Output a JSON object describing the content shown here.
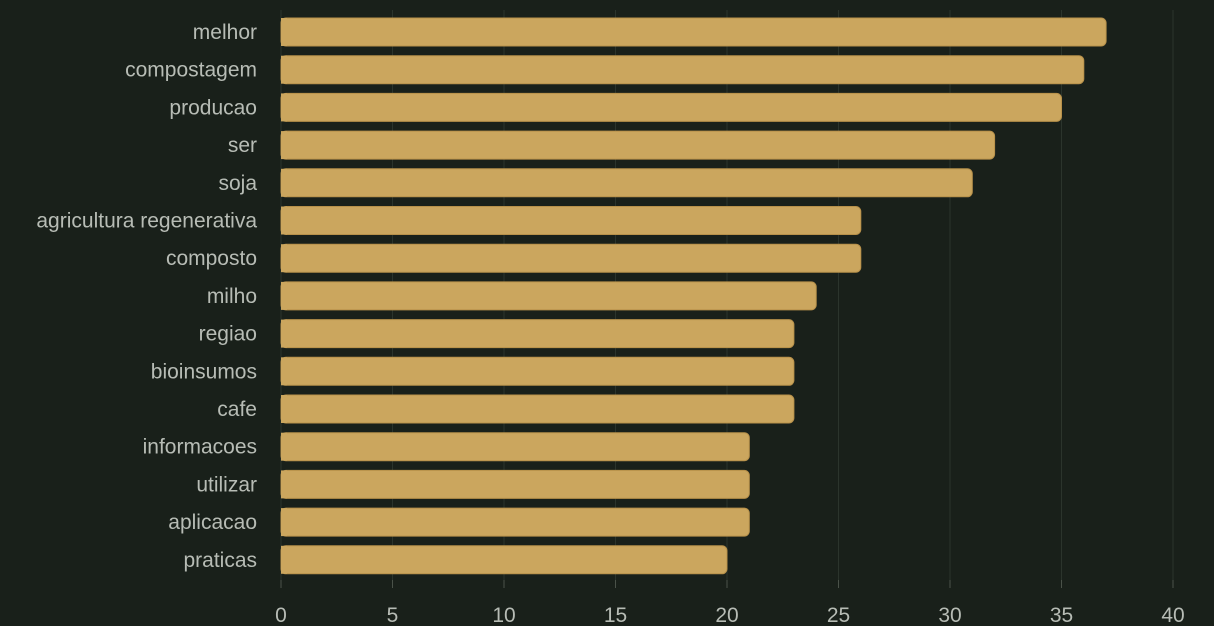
{
  "chart_data": {
    "type": "bar",
    "orientation": "horizontal",
    "categories": [
      "melhor",
      "compostagem",
      "producao",
      "ser",
      "soja",
      "agricultura regenerativa",
      "composto",
      "milho",
      "regiao",
      "bioinsumos",
      "cafe",
      "informacoes",
      "utilizar",
      "aplicacao",
      "praticas"
    ],
    "values": [
      37,
      36,
      35,
      32,
      31,
      26,
      26,
      24,
      23,
      23,
      23,
      21,
      21,
      21,
      20
    ],
    "xlim": [
      0,
      40
    ],
    "xticks": [
      "0",
      "5",
      "10",
      "15",
      "20",
      "25",
      "30",
      "35",
      "40"
    ],
    "grid": "vertical",
    "title": "",
    "xlabel": "",
    "ylabel": ""
  },
  "colors": {
    "background": "#19201a",
    "bar": "#cba65e",
    "bar_edge": "#b8914a",
    "text": "#b7bcb5",
    "grid": "#2b342c"
  }
}
